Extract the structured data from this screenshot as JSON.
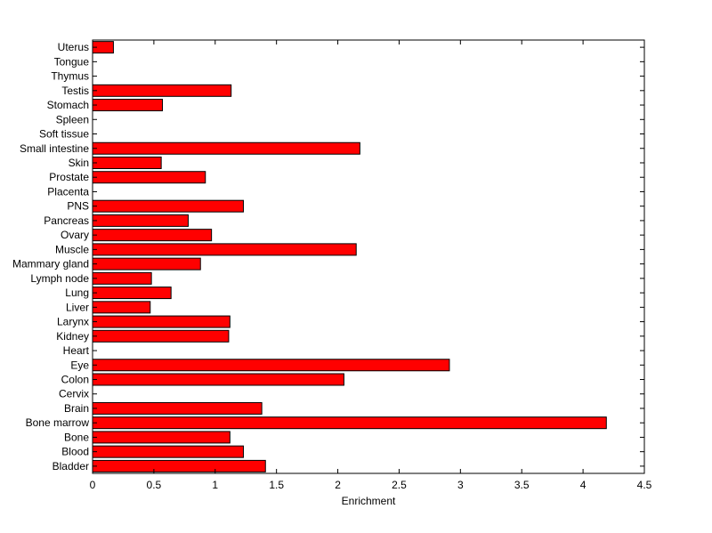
{
  "chart_data": {
    "type": "bar",
    "orientation": "horizontal",
    "title": "",
    "xlabel": "Enrichment",
    "ylabel": "",
    "xlim": [
      0,
      4.5
    ],
    "xticks": [
      "0",
      "0.5",
      "1",
      "1.5",
      "2",
      "2.5",
      "3",
      "3.5",
      "4",
      "4.5"
    ],
    "categories": [
      "Uterus",
      "Tongue",
      "Thymus",
      "Testis",
      "Stomach",
      "Spleen",
      "Soft tissue",
      "Small intestine",
      "Skin",
      "Prostate",
      "Placenta",
      "PNS",
      "Pancreas",
      "Ovary",
      "Muscle",
      "Mammary gland",
      "Lymph node",
      "Lung",
      "Liver",
      "Larynx",
      "Kidney",
      "Heart",
      "Eye",
      "Colon",
      "Cervix",
      "Brain",
      "Bone marrow",
      "Bone",
      "Blood",
      "Bladder"
    ],
    "values": [
      0.17,
      0,
      0,
      1.13,
      0.57,
      0,
      0,
      2.18,
      0.56,
      0.92,
      0,
      1.23,
      0.78,
      0.97,
      2.15,
      0.88,
      0.48,
      0.64,
      0.47,
      1.12,
      1.11,
      0,
      2.91,
      2.05,
      0,
      1.38,
      4.19,
      1.12,
      1.23,
      1.41
    ],
    "bar_color": "#ff0000",
    "grid": false,
    "legend": "none"
  }
}
